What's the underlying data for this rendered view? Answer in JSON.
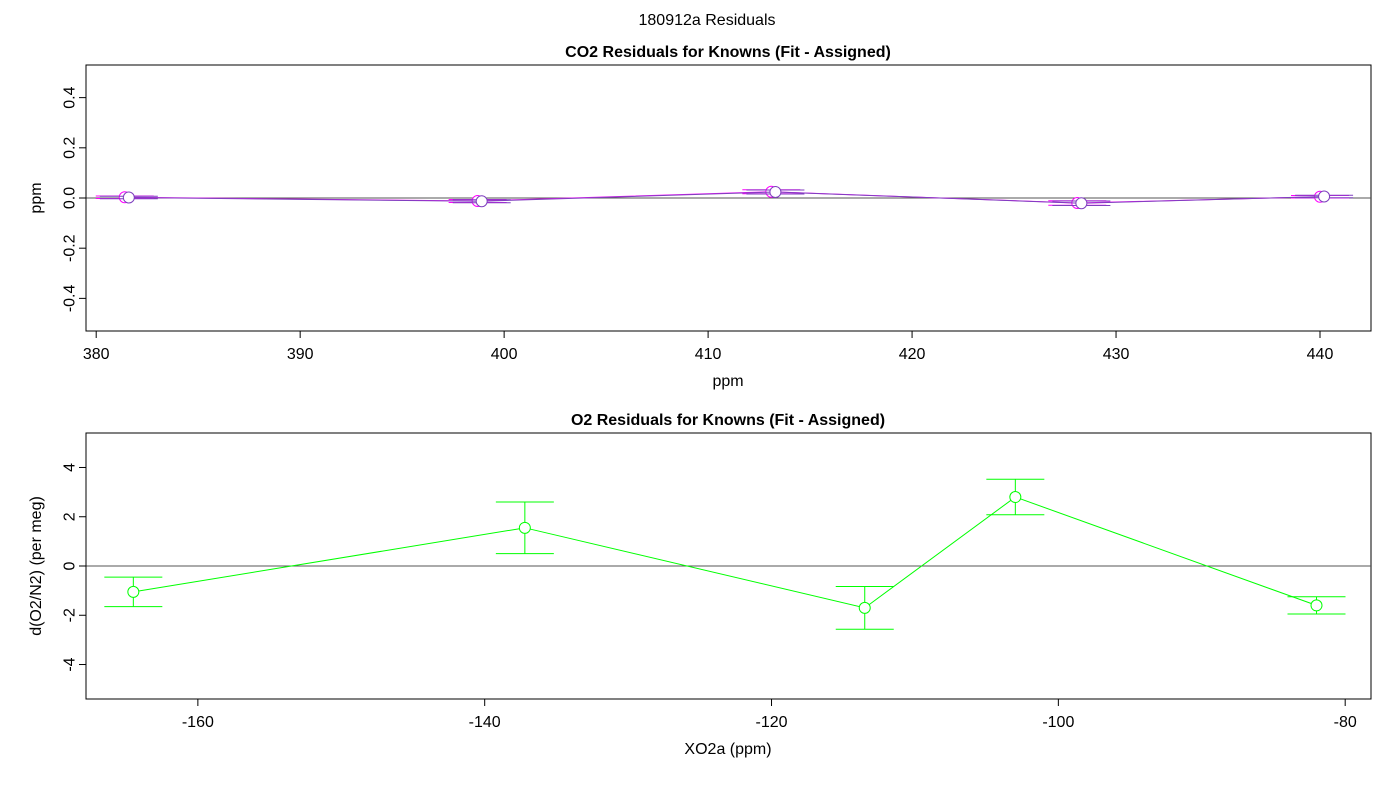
{
  "figure": {
    "title": "180912a  Residuals"
  },
  "chart_data": [
    {
      "type": "scatter",
      "title": "CO2 Residuals for Knowns (Fit - Assigned)",
      "xlabel": "ppm",
      "ylabel": "ppm",
      "xlim": [
        379.5,
        442.5
      ],
      "ylim": [
        -0.53,
        0.53
      ],
      "x_ticks": [
        380,
        390,
        400,
        410,
        420,
        430,
        440
      ],
      "y_ticks": [
        -0.4,
        -0.2,
        0.0,
        0.2,
        0.4
      ],
      "y_tick_labels": [
        "-0.4",
        "-0.2",
        "0.0",
        "0.2",
        "0.4"
      ],
      "reference_line": 0,
      "series": [
        {
          "color": "#FF00FF",
          "marker": "open-circle",
          "connected": true,
          "points": [
            {
              "x": 381.4,
              "y": 0.003,
              "err": 0.005
            },
            {
              "x": 398.7,
              "y": -0.012,
              "err": 0.006
            },
            {
              "x": 413.1,
              "y": 0.025,
              "err": 0.008
            },
            {
              "x": 428.1,
              "y": -0.02,
              "err": 0.009
            },
            {
              "x": 440.0,
              "y": 0.005,
              "err": 0.005
            }
          ]
        },
        {
          "color": "#7F3FBF",
          "marker": "open-circle",
          "connected": true,
          "points": [
            {
              "x": 381.6,
              "y": 0.002,
              "err": 0.005
            },
            {
              "x": 398.9,
              "y": -0.013,
              "err": 0.006
            },
            {
              "x": 413.3,
              "y": 0.024,
              "err": 0.008
            },
            {
              "x": 428.3,
              "y": -0.021,
              "err": 0.009
            },
            {
              "x": 440.2,
              "y": 0.006,
              "err": 0.005
            }
          ]
        }
      ]
    },
    {
      "type": "scatter",
      "title": "O2 Residuals for Knowns (Fit - Assigned)",
      "xlabel": "XO2a (ppm)",
      "ylabel": "d(O2/N2) (per meg)",
      "xlim": [
        -167.8,
        -78.2
      ],
      "ylim": [
        -5.4,
        5.4
      ],
      "x_ticks": [
        -160,
        -140,
        -120,
        -100,
        -80
      ],
      "y_ticks": [
        -4,
        -2,
        0,
        2,
        4
      ],
      "y_tick_labels": [
        "-4",
        "-2",
        "0",
        "2",
        "4"
      ],
      "reference_line": 0,
      "series": [
        {
          "color": "#00FF00",
          "marker": "open-circle",
          "connected": true,
          "points": [
            {
              "x": -164.5,
              "y": -1.05,
              "err": 0.6
            },
            {
              "x": -137.2,
              "y": 1.55,
              "err": 1.05
            },
            {
              "x": -113.5,
              "y": -1.7,
              "err": 0.87
            },
            {
              "x": -103.0,
              "y": 2.8,
              "err": 0.72
            },
            {
              "x": -82.0,
              "y": -1.6,
              "err": 0.35
            }
          ]
        }
      ]
    }
  ]
}
